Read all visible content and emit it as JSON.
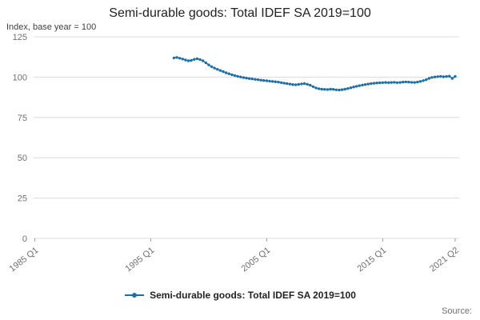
{
  "page": {
    "title": "Semi-durable goods: Total IDEF SA 2019=100",
    "y_axis_unit": "Index, base year = 100",
    "source_label": "Source:",
    "legend_label": "Semi-durable goods: Total IDEF SA 2019=100"
  },
  "chart_data": {
    "type": "line",
    "title": "Semi-durable goods: Total IDEF SA 2019=100",
    "xlabel": "",
    "ylabel": "Index, base year = 100",
    "ylim": [
      0,
      125
    ],
    "yticks": [
      0,
      25,
      50,
      75,
      100,
      125
    ],
    "xlim": [
      1984.9,
      2021.6
    ],
    "xticks": [
      {
        "value": 1985.0,
        "label": "1985 Q1"
      },
      {
        "value": 1995.0,
        "label": "1995 Q1"
      },
      {
        "value": 2005.0,
        "label": "2005 Q1"
      },
      {
        "value": 2015.0,
        "label": "2015 Q1"
      },
      {
        "value": 2021.25,
        "label": "2021 Q2"
      }
    ],
    "grid": true,
    "legend_position": "bottom",
    "series": [
      {
        "name": "Semi-durable goods: Total IDEF SA 2019=100",
        "color": "#1d70a8",
        "x_start": 1997.0,
        "x_step": 0.25,
        "x_start_label": "1997 Q1",
        "x_end_label": "2021 Q2",
        "y": [
          111.9,
          112.2,
          111.7,
          111.2,
          110.6,
          110.1,
          110.4,
          111.0,
          111.4,
          110.9,
          110.1,
          108.9,
          107.6,
          106.5,
          105.6,
          104.8,
          104.1,
          103.4,
          102.7,
          102.1,
          101.5,
          101.0,
          100.5,
          100.1,
          99.7,
          99.4,
          99.1,
          98.9,
          98.6,
          98.4,
          98.1,
          97.9,
          97.7,
          97.5,
          97.3,
          97.1,
          96.9,
          96.6,
          96.3,
          96.0,
          95.7,
          95.4,
          95.3,
          95.5,
          95.8,
          96.0,
          95.6,
          95.0,
          94.1,
          93.3,
          92.8,
          92.5,
          92.4,
          92.3,
          92.5,
          92.4,
          92.1,
          92.0,
          92.2,
          92.5,
          92.9,
          93.4,
          93.9,
          94.3,
          94.7,
          95.1,
          95.4,
          95.7,
          96.0,
          96.2,
          96.4,
          96.5,
          96.6,
          96.7,
          96.6,
          96.7,
          96.8,
          96.6,
          96.7,
          96.9,
          97.0,
          96.9,
          96.8,
          96.7,
          96.9,
          97.3,
          97.8,
          98.4,
          99.2,
          99.8,
          100.1,
          100.3,
          100.5,
          100.2,
          100.4,
          100.6,
          99.2,
          100.4
        ]
      }
    ]
  }
}
